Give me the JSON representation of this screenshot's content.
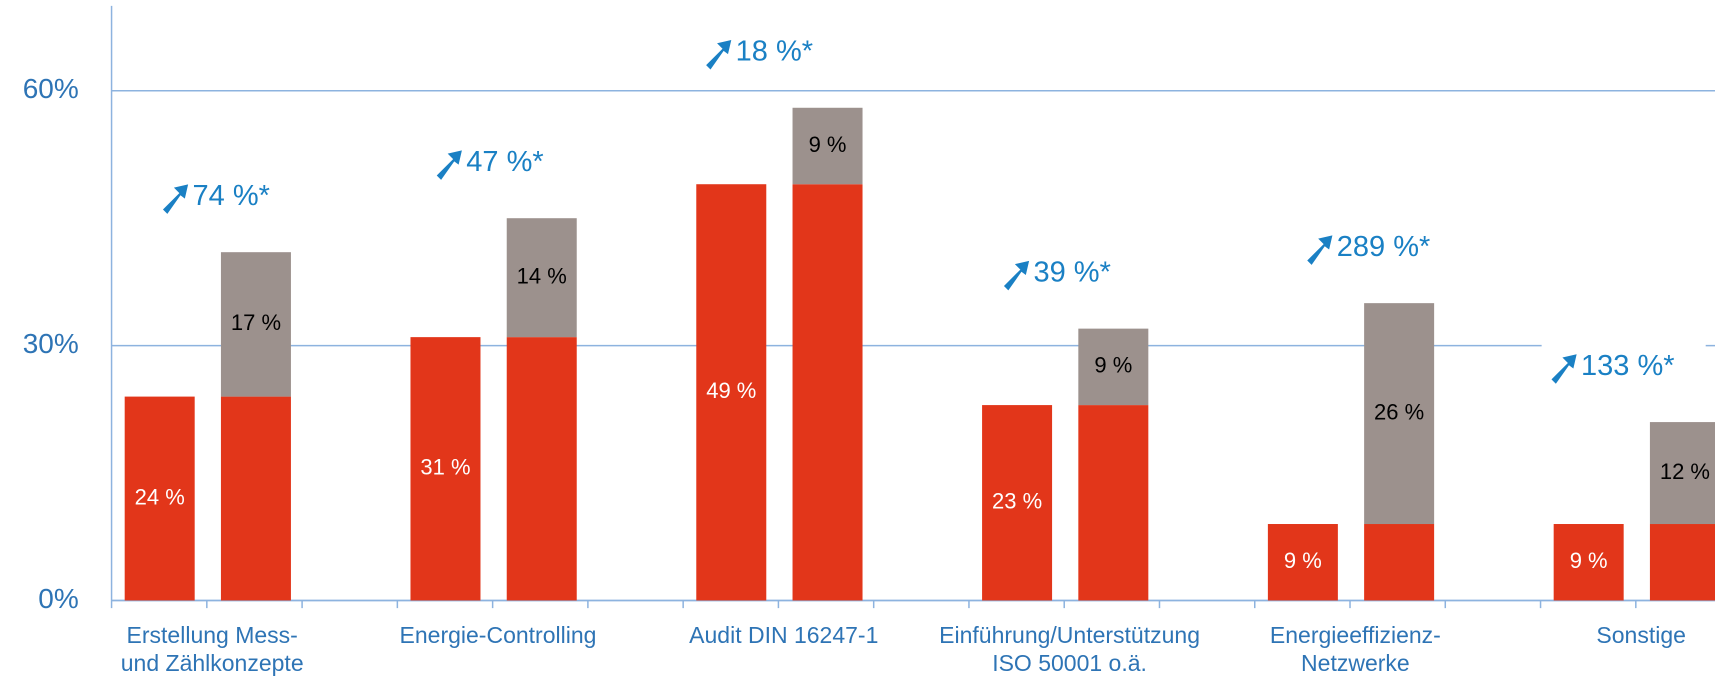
{
  "chart_data": {
    "type": "bar",
    "categories": [
      "Erstellung Mess-\nund Zählkonzepte",
      "Energie-Controlling",
      "Audit DIN 16247-1",
      "Einführung/Unterstützung\nISO 50001 o.ä.",
      "Energieeffizienz-\nNetzwerke",
      "Sonstige"
    ],
    "series": [
      {
        "color": "#e2361a",
        "values": [
          24,
          31,
          49,
          23,
          9,
          9
        ],
        "value_labels": [
          "24 %",
          "31 %",
          "49 %",
          "23 %",
          "9 %",
          "9 %"
        ]
      },
      {
        "color": "#e2361a",
        "values": [
          24,
          31,
          49,
          23,
          9,
          9
        ]
      },
      {
        "color": "#9c918d",
        "values": [
          17,
          14,
          9,
          9,
          26,
          12
        ],
        "value_labels": [
          "17 %",
          "14 %",
          "9 %",
          "9 %",
          "26 %",
          "12 %"
        ]
      }
    ],
    "annotations": [
      "74 %*",
      "47 %*",
      "18 %*",
      "39 %*",
      "289 %*",
      "133 %*"
    ],
    "annotation_color": "#1a80c4",
    "ylim": [
      0,
      70
    ],
    "yticks": [
      {
        "value": 0,
        "label": "0%"
      },
      {
        "value": 30,
        "label": "30%"
      },
      {
        "value": 60,
        "label": "60%"
      }
    ],
    "grid": true
  }
}
